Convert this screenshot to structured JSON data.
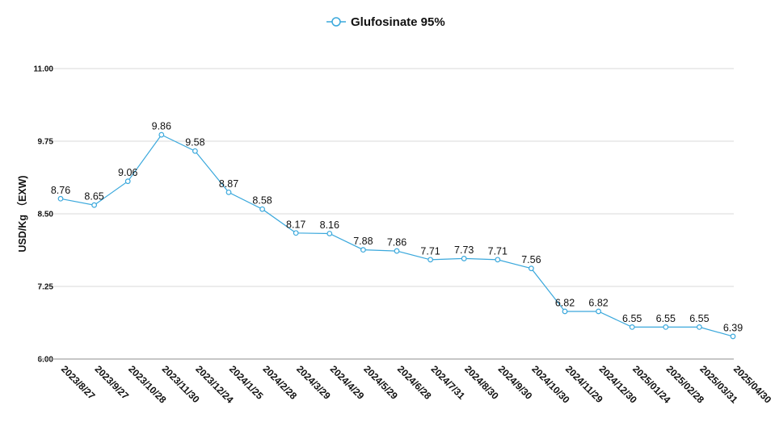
{
  "chart_data": {
    "type": "line",
    "title": "",
    "xlabel": "",
    "ylabel": "USD/Kg （EXW)",
    "ylim": [
      6.0,
      11.0
    ],
    "yticks": [
      "11.00",
      "9.75",
      "8.50",
      "7.25",
      "6.00"
    ],
    "grid": true,
    "legend_position": "top-center",
    "categories": [
      "2023/8/27",
      "2023/9/27",
      "2023/10/28",
      "2023/11/30",
      "2023/12/24",
      "2024/1/25",
      "2024/2/28",
      "2024/3/29",
      "2024/4/29",
      "2024/5/29",
      "2024/6/28",
      "2024/7/31",
      "2024/8/30",
      "2024/9/30",
      "2024/10/30",
      "2024/11/29",
      "2024/12/30",
      "2025/01/24",
      "2025/02/28",
      "2025/03/31",
      "2025/04/30"
    ],
    "series": [
      {
        "name": "Glufosinate 95%",
        "color": "#3aa8dc",
        "values": [
          8.76,
          8.65,
          9.06,
          9.86,
          9.58,
          8.87,
          8.58,
          8.17,
          8.16,
          7.88,
          7.86,
          7.71,
          7.73,
          7.71,
          7.56,
          6.82,
          6.82,
          6.55,
          6.55,
          6.55,
          6.39
        ],
        "labels": [
          "8.76",
          "8.65",
          "9.06",
          "9.86",
          "9.58",
          "8.87",
          "8.58",
          "8.17",
          "8.16",
          "7.88",
          "7.86",
          "7.71",
          "7.73",
          "7.71",
          "7.56",
          "6.82",
          "6.82",
          "6.55",
          "6.55",
          "6.55",
          "6.39"
        ]
      }
    ]
  }
}
